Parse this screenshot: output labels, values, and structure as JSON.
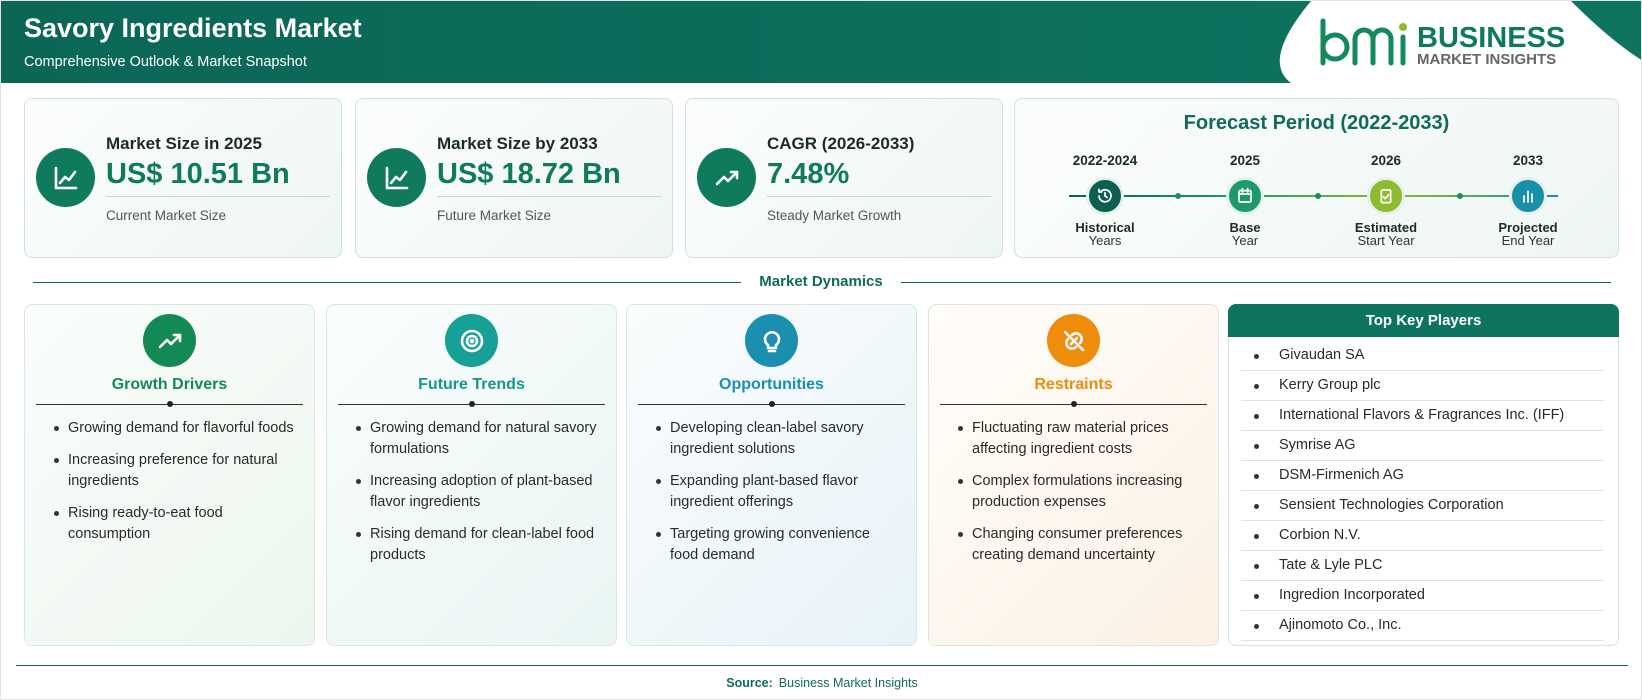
{
  "header": {
    "title": "Savory Ingredients Market",
    "subtitle": "Comprehensive Outlook & Market Snapshot",
    "logo": {
      "name": "BUSINESS",
      "tagline": "MARKET INSIGHTS"
    }
  },
  "metrics": [
    {
      "label": "Market Size in 2025",
      "value": "US$ 10.51 Bn",
      "note": "Current Market Size"
    },
    {
      "label": "Market Size by 2033",
      "value": "US$ 18.72 Bn",
      "note": "Future Market Size"
    },
    {
      "label": "CAGR (2026-2033)",
      "value": "7.48%",
      "note": "Steady Market Growth"
    }
  ],
  "forecast": {
    "title": "Forecast Period (2022-2033)",
    "milestones": [
      {
        "year": "2022-2024",
        "label": "Historical",
        "sub": "Years"
      },
      {
        "year": "2025",
        "label": "Base",
        "sub": "Year"
      },
      {
        "year": "2026",
        "label": "Estimated",
        "sub": "Start Year"
      },
      {
        "year": "2033",
        "label": "Projected",
        "sub": "End Year"
      }
    ]
  },
  "dynamics": {
    "title": "Market Dynamics",
    "sections": [
      {
        "title": "Growth Drivers",
        "items": [
          "Growing demand for flavorful foods",
          "Increasing preference for natural ingredients",
          "Rising ready-to-eat food consumption"
        ]
      },
      {
        "title": "Future Trends",
        "items": [
          "Growing demand for natural savory formulations",
          "Increasing adoption of plant-based flavor ingredients",
          "Rising demand for clean-label food products"
        ]
      },
      {
        "title": "Opportunities",
        "items": [
          "Developing clean-label savory ingredient solutions",
          "Expanding plant-based flavor ingredient offerings",
          "Targeting growing convenience food demand"
        ]
      },
      {
        "title": "Restraints",
        "items": [
          "Fluctuating raw material prices affecting ingredient costs",
          "Complex formulations increasing production expenses",
          "Changing consumer preferences creating demand uncertainty"
        ]
      }
    ]
  },
  "key_players": {
    "title": "Top Key Players",
    "items": [
      "Givaudan SA",
      "Kerry Group plc",
      "International Flavors & Fragrances Inc. (IFF)",
      "Symrise AG",
      "DSM-Firmenich AG",
      "Sensient Technologies Corporation",
      "Corbion N.V.",
      "Tate & Lyle PLC",
      "Ingredion Incorporated",
      "Ajinomoto Co., Inc."
    ]
  },
  "source": {
    "label": "Source:",
    "text": "Business Market Insights"
  }
}
